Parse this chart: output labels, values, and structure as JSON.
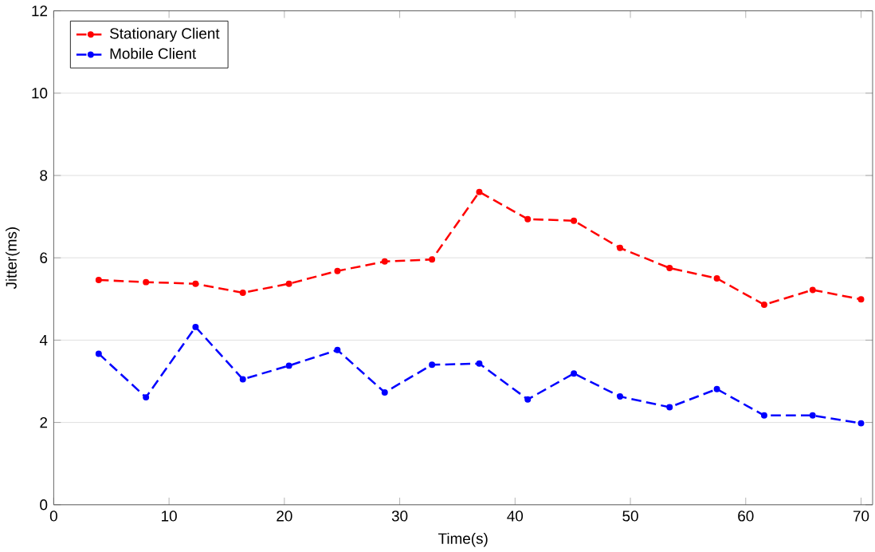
{
  "chart_data": {
    "type": "line",
    "xlabel": "Time(s)",
    "ylabel": "Jitter(ms)",
    "x": [
      3.9,
      8.0,
      12.3,
      16.4,
      20.4,
      24.6,
      28.7,
      32.8,
      36.9,
      41.1,
      45.1,
      49.1,
      53.4,
      57.5,
      61.6,
      65.8,
      70.0
    ],
    "series": [
      {
        "name": "Stationary Client",
        "color": "#ff0000",
        "values": [
          5.46,
          5.41,
          5.37,
          5.15,
          5.37,
          5.68,
          5.91,
          5.96,
          7.6,
          6.94,
          6.9,
          6.24,
          5.75,
          5.5,
          4.86,
          5.22,
          4.99
        ]
      },
      {
        "name": "Mobile Client",
        "color": "#0000ff",
        "values": [
          3.67,
          2.61,
          4.32,
          3.05,
          3.38,
          3.76,
          2.73,
          3.4,
          3.43,
          2.56,
          3.19,
          2.63,
          2.37,
          2.81,
          2.17,
          2.17,
          1.98
        ]
      }
    ],
    "xlim": [
      0,
      71
    ],
    "ylim": [
      0,
      12
    ],
    "xticks": [
      0,
      10,
      20,
      30,
      40,
      50,
      60,
      70
    ],
    "yticks": [
      0,
      2,
      4,
      6,
      8,
      10,
      12
    ],
    "grid": "y",
    "legend": "top left",
    "marker": "circle",
    "line_style": "dashed"
  }
}
